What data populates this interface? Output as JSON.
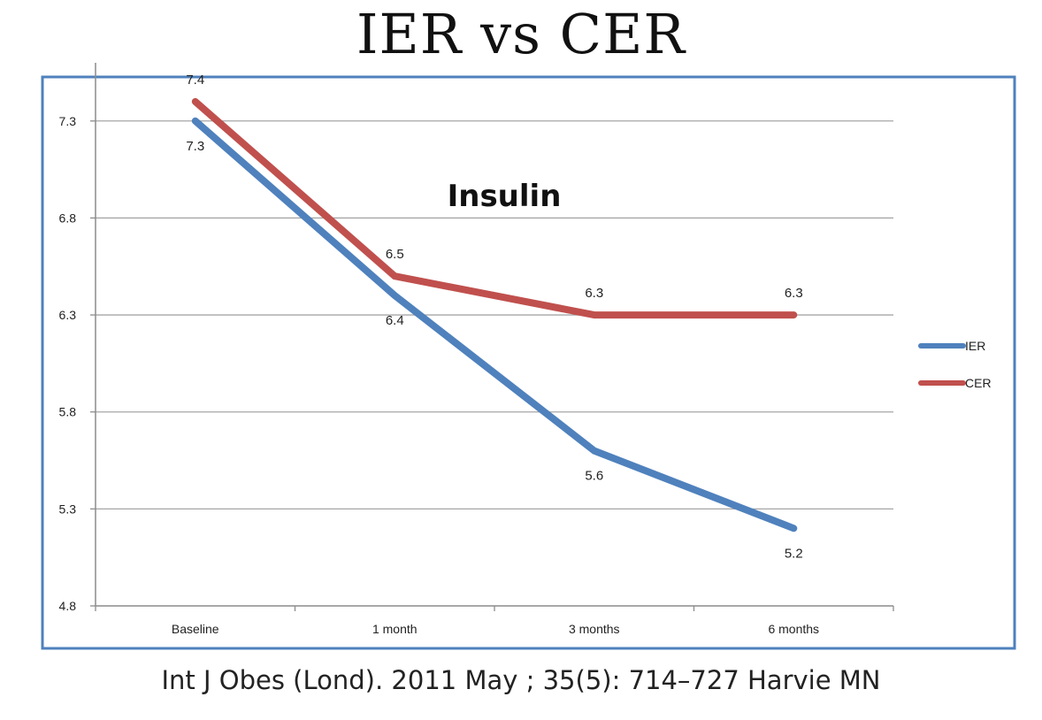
{
  "slide": {
    "title": "IER vs CER",
    "citation": "Int J Obes (Lond). 2011 May ; 35(5): 714–727 Harvie MN"
  },
  "colors": {
    "frame": "#4f81bd",
    "grid": "#a6a6a6",
    "ier": "#4f81bd",
    "cer": "#c0504d"
  },
  "chart_data": {
    "type": "line",
    "title": "Insulin",
    "xlabel": "",
    "ylabel": "",
    "categories": [
      "Baseline",
      "1 month",
      "3 months",
      "6 months"
    ],
    "ylim": [
      4.8,
      7.6
    ],
    "yticks": [
      4.8,
      5.3,
      5.8,
      6.3,
      6.8,
      7.3
    ],
    "grid": true,
    "legend_position": "right",
    "series": [
      {
        "name": "IER",
        "values": [
          7.3,
          6.4,
          5.6,
          5.2
        ],
        "color": "#4f81bd",
        "label_position": "below"
      },
      {
        "name": "CER",
        "values": [
          7.4,
          6.5,
          6.3,
          6.3
        ],
        "color": "#c0504d",
        "label_position": "above"
      }
    ]
  }
}
